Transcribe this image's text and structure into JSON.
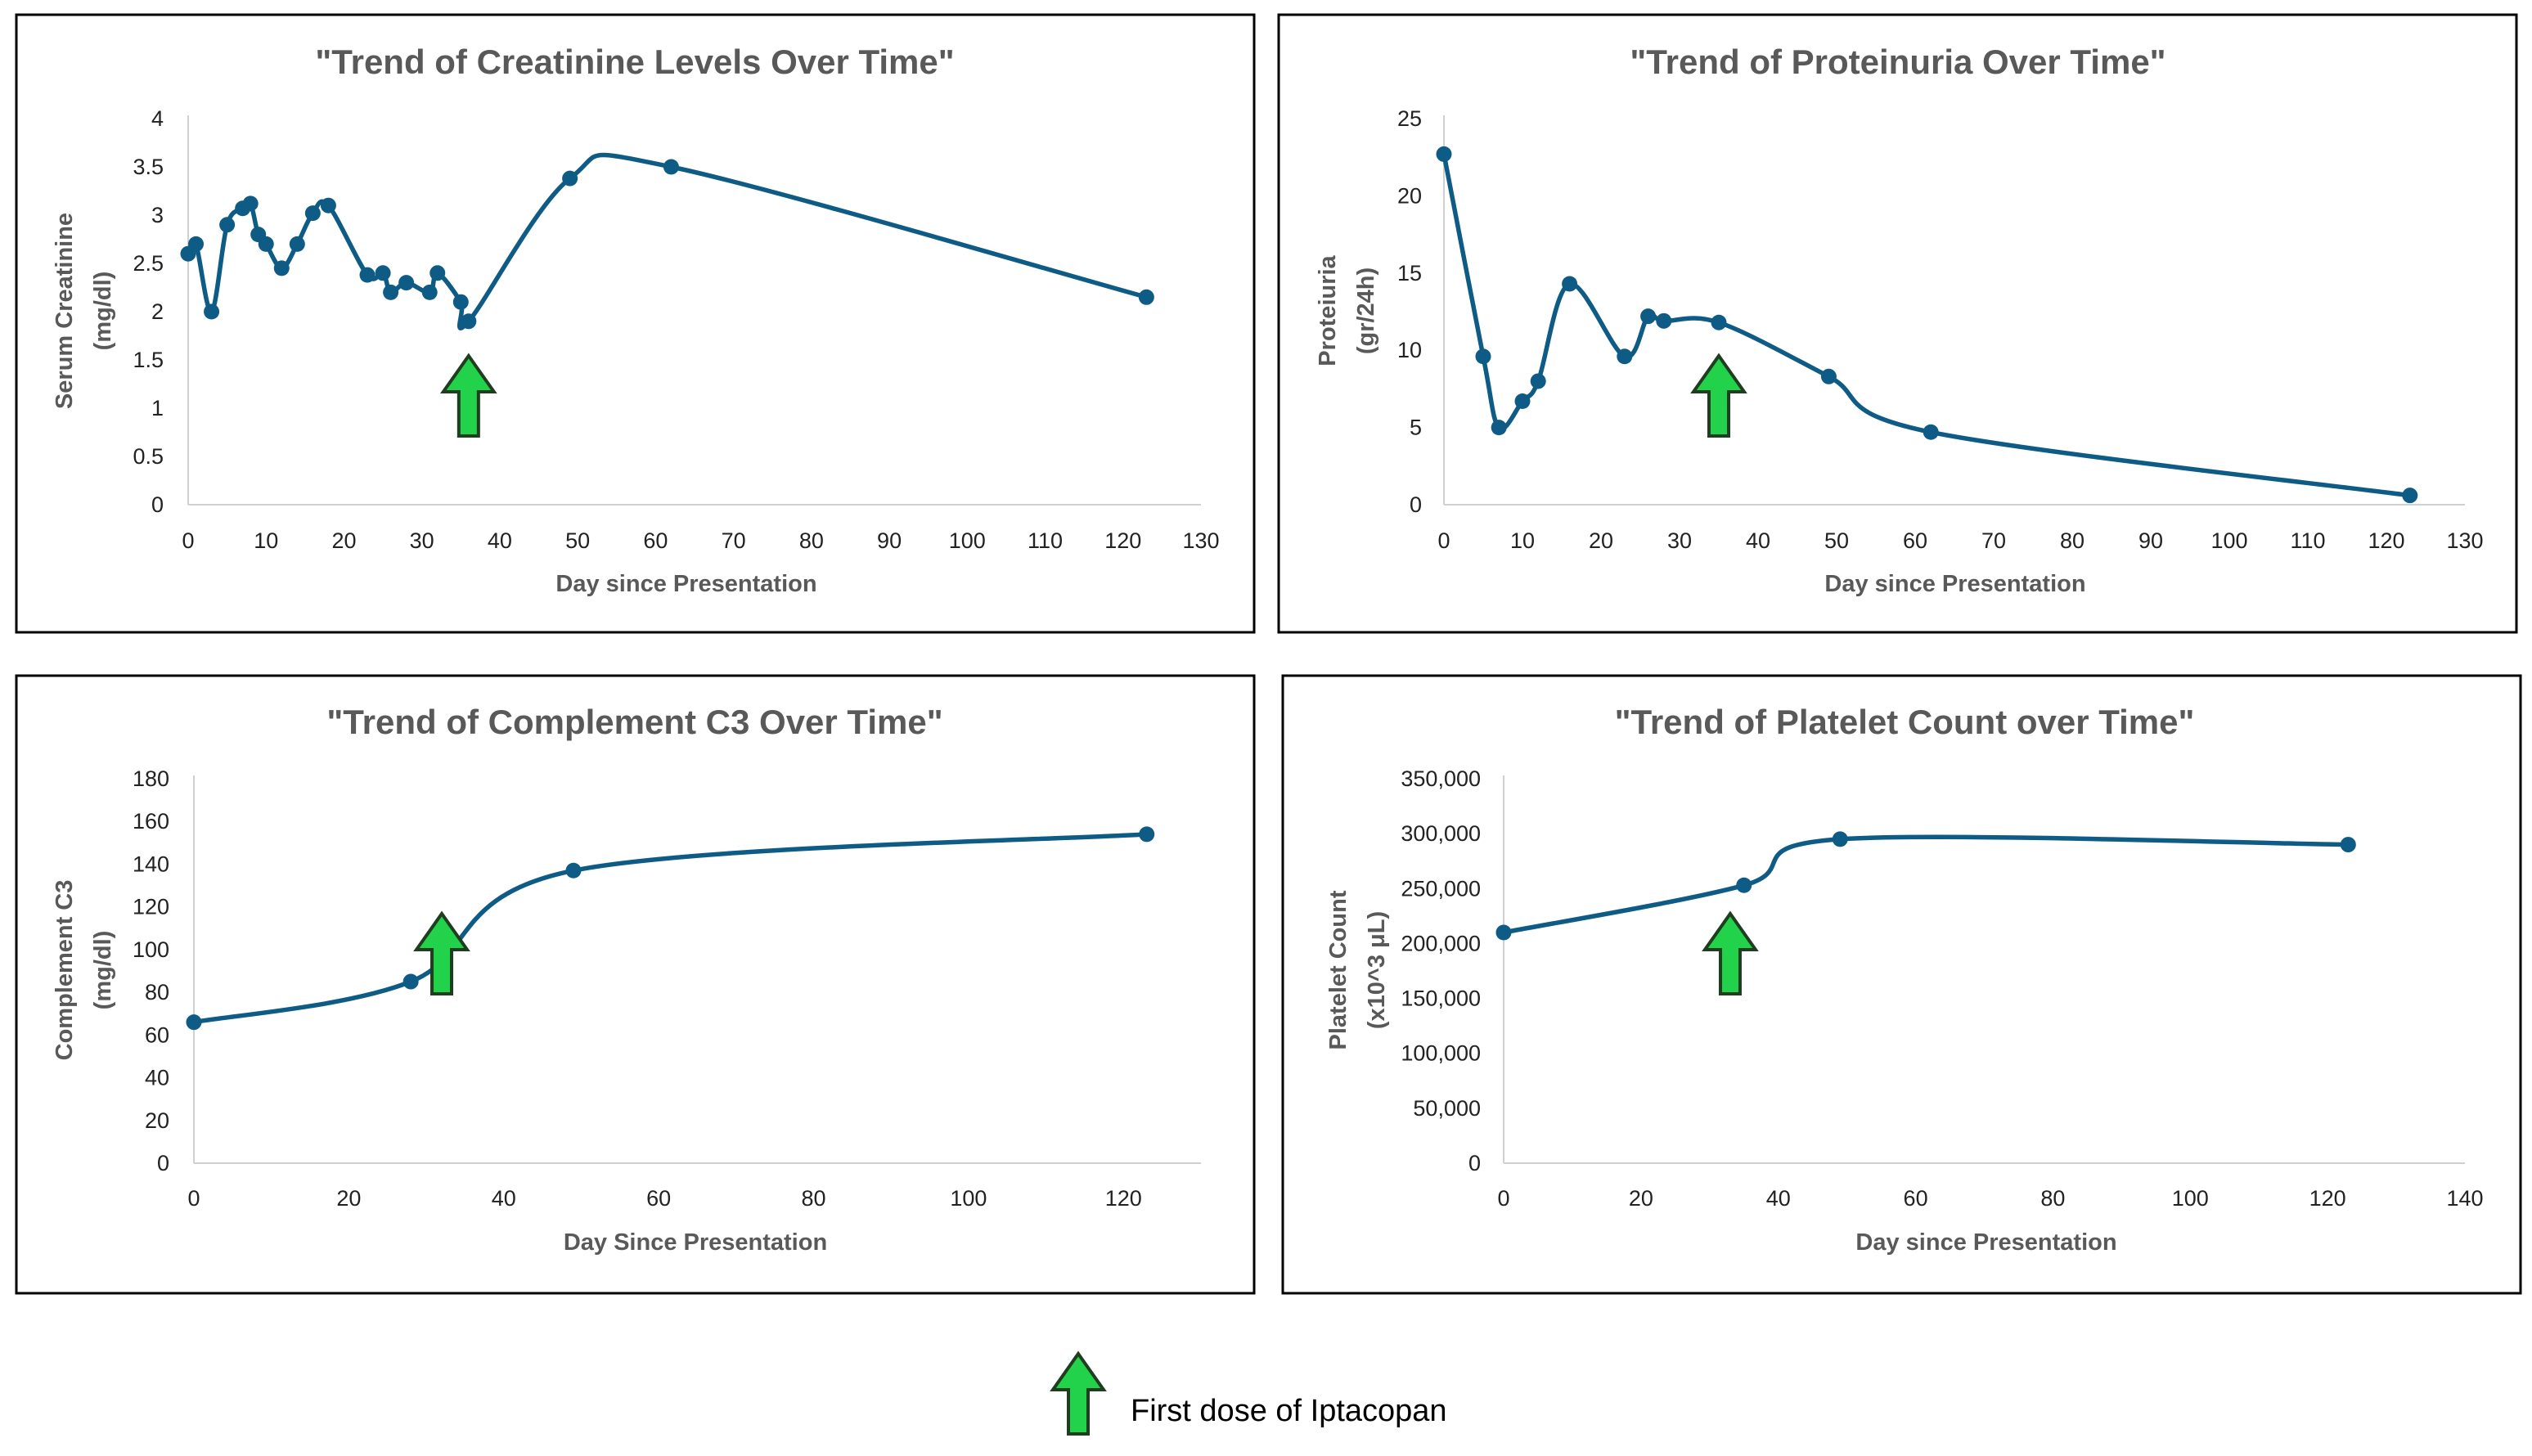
{
  "colors": {
    "series": "#0e5b86",
    "arrow_fill": "#22d24b",
    "arrow_stroke": "#1f3d1f",
    "frame": "#000000"
  },
  "legend": {
    "icon": "green-up-arrow-icon",
    "label": "First dose of Iptacopan"
  },
  "chart_data": [
    {
      "id": "creatinine",
      "type": "line",
      "smooth": true,
      "title": "\"Trend of Creatinine Levels Over Time\"",
      "xlabel": "Day since Presentation",
      "ylabel": [
        "Serum Creatinine",
        "(mg/dl)"
      ],
      "xlim": [
        0,
        130
      ],
      "ylim": [
        0,
        4
      ],
      "xticks": [
        0,
        10,
        20,
        30,
        40,
        50,
        60,
        70,
        80,
        90,
        100,
        110,
        120,
        130
      ],
      "yticks": [
        0,
        0.5,
        1,
        1.5,
        2,
        2.5,
        3,
        3.5,
        4
      ],
      "ytick_labels": [
        "0",
        "0.5",
        "1",
        "1.5",
        "2",
        "2.5",
        "3",
        "3.5",
        "4"
      ],
      "x": [
        0,
        1,
        3,
        5,
        7,
        8,
        9,
        10,
        12,
        14,
        16,
        18,
        23,
        25,
        26,
        28,
        31,
        32,
        35,
        36,
        49,
        62,
        123
      ],
      "y": [
        2.6,
        2.7,
        2.0,
        2.9,
        3.07,
        3.12,
        2.8,
        2.7,
        2.45,
        2.7,
        3.02,
        3.1,
        2.38,
        2.4,
        2.2,
        2.3,
        2.2,
        2.4,
        2.1,
        1.9,
        3.38,
        3.5,
        2.15
      ],
      "arrow_day": 36,
      "grid": false,
      "legend": "none"
    },
    {
      "id": "proteinuria",
      "type": "line",
      "smooth": true,
      "title": "\"Trend of Proteinuria Over Time\"",
      "xlabel": "Day since Presentation",
      "ylabel": [
        "Proteiuria",
        "(gr/24h)"
      ],
      "xlim": [
        0,
        130
      ],
      "ylim": [
        0,
        25
      ],
      "xticks": [
        0,
        10,
        20,
        30,
        40,
        50,
        60,
        70,
        80,
        90,
        100,
        110,
        120,
        130
      ],
      "yticks": [
        0,
        5,
        10,
        15,
        20,
        25
      ],
      "ytick_labels": [
        "0",
        "5",
        "10",
        "15",
        "20",
        "25"
      ],
      "x": [
        0,
        5,
        7,
        10,
        12,
        16,
        23,
        26,
        28,
        35,
        49,
        62,
        123
      ],
      "y": [
        22.7,
        9.6,
        5.0,
        6.7,
        8.0,
        14.3,
        9.6,
        12.2,
        11.9,
        11.8,
        8.3,
        4.7,
        0.6
      ],
      "arrow_day": 35,
      "grid": false,
      "legend": "none"
    },
    {
      "id": "complement-c3",
      "type": "line",
      "smooth": true,
      "title": "\"Trend of Complement C3 Over Time\"",
      "xlabel": "Day Since Presentation",
      "ylabel": [
        "Complement C3",
        "(mg/dl)"
      ],
      "xlim": [
        0,
        130
      ],
      "ylim": [
        0,
        180
      ],
      "xticks": [
        0,
        20,
        40,
        60,
        80,
        100,
        120
      ],
      "yticks": [
        0,
        20,
        40,
        60,
        80,
        100,
        120,
        140,
        160,
        180
      ],
      "ytick_labels": [
        "0",
        "20",
        "40",
        "60",
        "80",
        "100",
        "120",
        "140",
        "160",
        "180"
      ],
      "x": [
        0,
        28,
        49,
        123
      ],
      "y": [
        66,
        85,
        137,
        154
      ],
      "arrow_day": 32,
      "grid": false,
      "legend": "none"
    },
    {
      "id": "platelets",
      "type": "line",
      "smooth": true,
      "title": "\"Trend of Platelet Count over Time\"",
      "xlabel": "Day since Presentation",
      "ylabel": [
        "Platelet Count",
        "(x10^3 μL)"
      ],
      "xlim": [
        0,
        140
      ],
      "ylim": [
        0,
        350000
      ],
      "xticks": [
        0,
        20,
        40,
        60,
        80,
        100,
        120,
        140
      ],
      "yticks": [
        0,
        50000,
        100000,
        150000,
        200000,
        250000,
        300000,
        350000
      ],
      "ytick_labels": [
        "0",
        "50,000",
        "100,000",
        "150,000",
        "200,000",
        "250,000",
        "300,000",
        "350,000"
      ],
      "x": [
        0,
        35,
        49,
        123
      ],
      "y": [
        210000,
        253000,
        295000,
        290000
      ],
      "arrow_day": 33,
      "grid": false,
      "legend": "none"
    }
  ]
}
